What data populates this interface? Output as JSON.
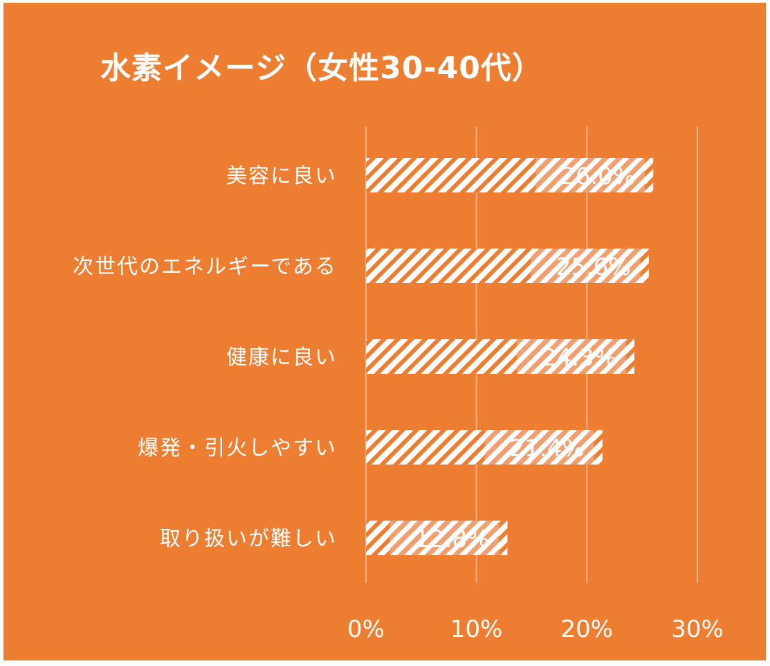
{
  "chart_data": {
    "type": "bar",
    "orientation": "horizontal",
    "title": "水素イメージ（女性30-40代）",
    "categories": [
      "美容に良い",
      "次世代のエネルギーである",
      "健康に良い",
      "爆発・引火しやすい",
      "取り扱いが難しい"
    ],
    "values": [
      26.0,
      25.6,
      24.3,
      21.4,
      12.8
    ],
    "value_labels": [
      "26.0%",
      "25.6%",
      "24.3%",
      "21.4%",
      "12.8%"
    ],
    "xlim": [
      0,
      30
    ],
    "xticks": [
      0,
      10,
      20,
      30
    ],
    "xtick_labels": [
      "0%",
      "10%",
      "20%",
      "30%"
    ],
    "grid": true,
    "legend": "none",
    "colors": {
      "background": "#ED7D31",
      "bar_pattern": "#ffffff",
      "text": "#ffffff"
    }
  }
}
